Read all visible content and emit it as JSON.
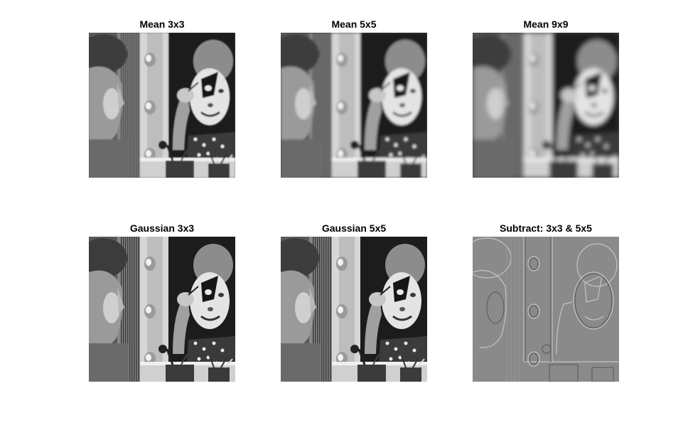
{
  "figure": {
    "panels": [
      {
        "title": "Mean 3x3",
        "effect": "blur",
        "level": 0.8,
        "icon": "clown-photo-icon"
      },
      {
        "title": "Mean 5x5",
        "effect": "blur",
        "level": 1.6,
        "icon": "clown-photo-icon"
      },
      {
        "title": "Mean 9x9",
        "effect": "blur",
        "level": 3.2,
        "icon": "clown-photo-icon"
      },
      {
        "title": "Gaussian 3x3",
        "effect": "sharp",
        "level": 0,
        "icon": "clown-photo-icon"
      },
      {
        "title": "Gaussian 5x5",
        "effect": "sharp",
        "level": 0.3,
        "icon": "clown-photo-icon"
      },
      {
        "title": "Subtract: 3x3 & 5x5",
        "effect": "edges",
        "level": 0,
        "icon": "edge-map-icon"
      }
    ]
  }
}
